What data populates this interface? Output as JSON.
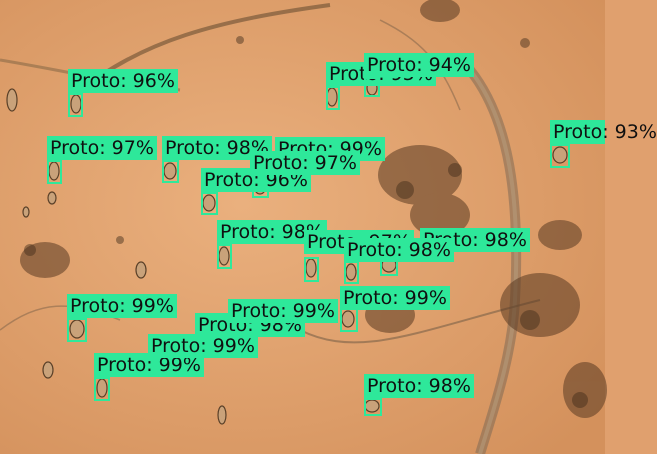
{
  "colors": {
    "box": "#2ee89a",
    "background": "#e0a06e"
  },
  "detections": [
    {
      "label": "Proto: 96%"
    },
    {
      "label": "Proto: 95%"
    },
    {
      "label": "Proto: 94%"
    },
    {
      "label": "Proto: 93%"
    },
    {
      "label": "Proto: 97%"
    },
    {
      "label": "Proto: 98%"
    },
    {
      "label": "Proto: 99%"
    },
    {
      "label": "Proto: 96%"
    },
    {
      "label": "Proto: 98%"
    },
    {
      "label": "Proto: 97%"
    },
    {
      "label": "Proto: 98%"
    },
    {
      "label": "Proto: 98%"
    },
    {
      "label": "Proto: 99%"
    },
    {
      "label": "Proto: 99%"
    },
    {
      "label": "Proto: 99%"
    },
    {
      "label": "Proto: 98%"
    },
    {
      "label": "Proto: 98%"
    },
    {
      "label": "Proto: 99%"
    },
    {
      "label": "Proto: 97%"
    },
    {
      "label": "Proto: 99%"
    }
  ]
}
